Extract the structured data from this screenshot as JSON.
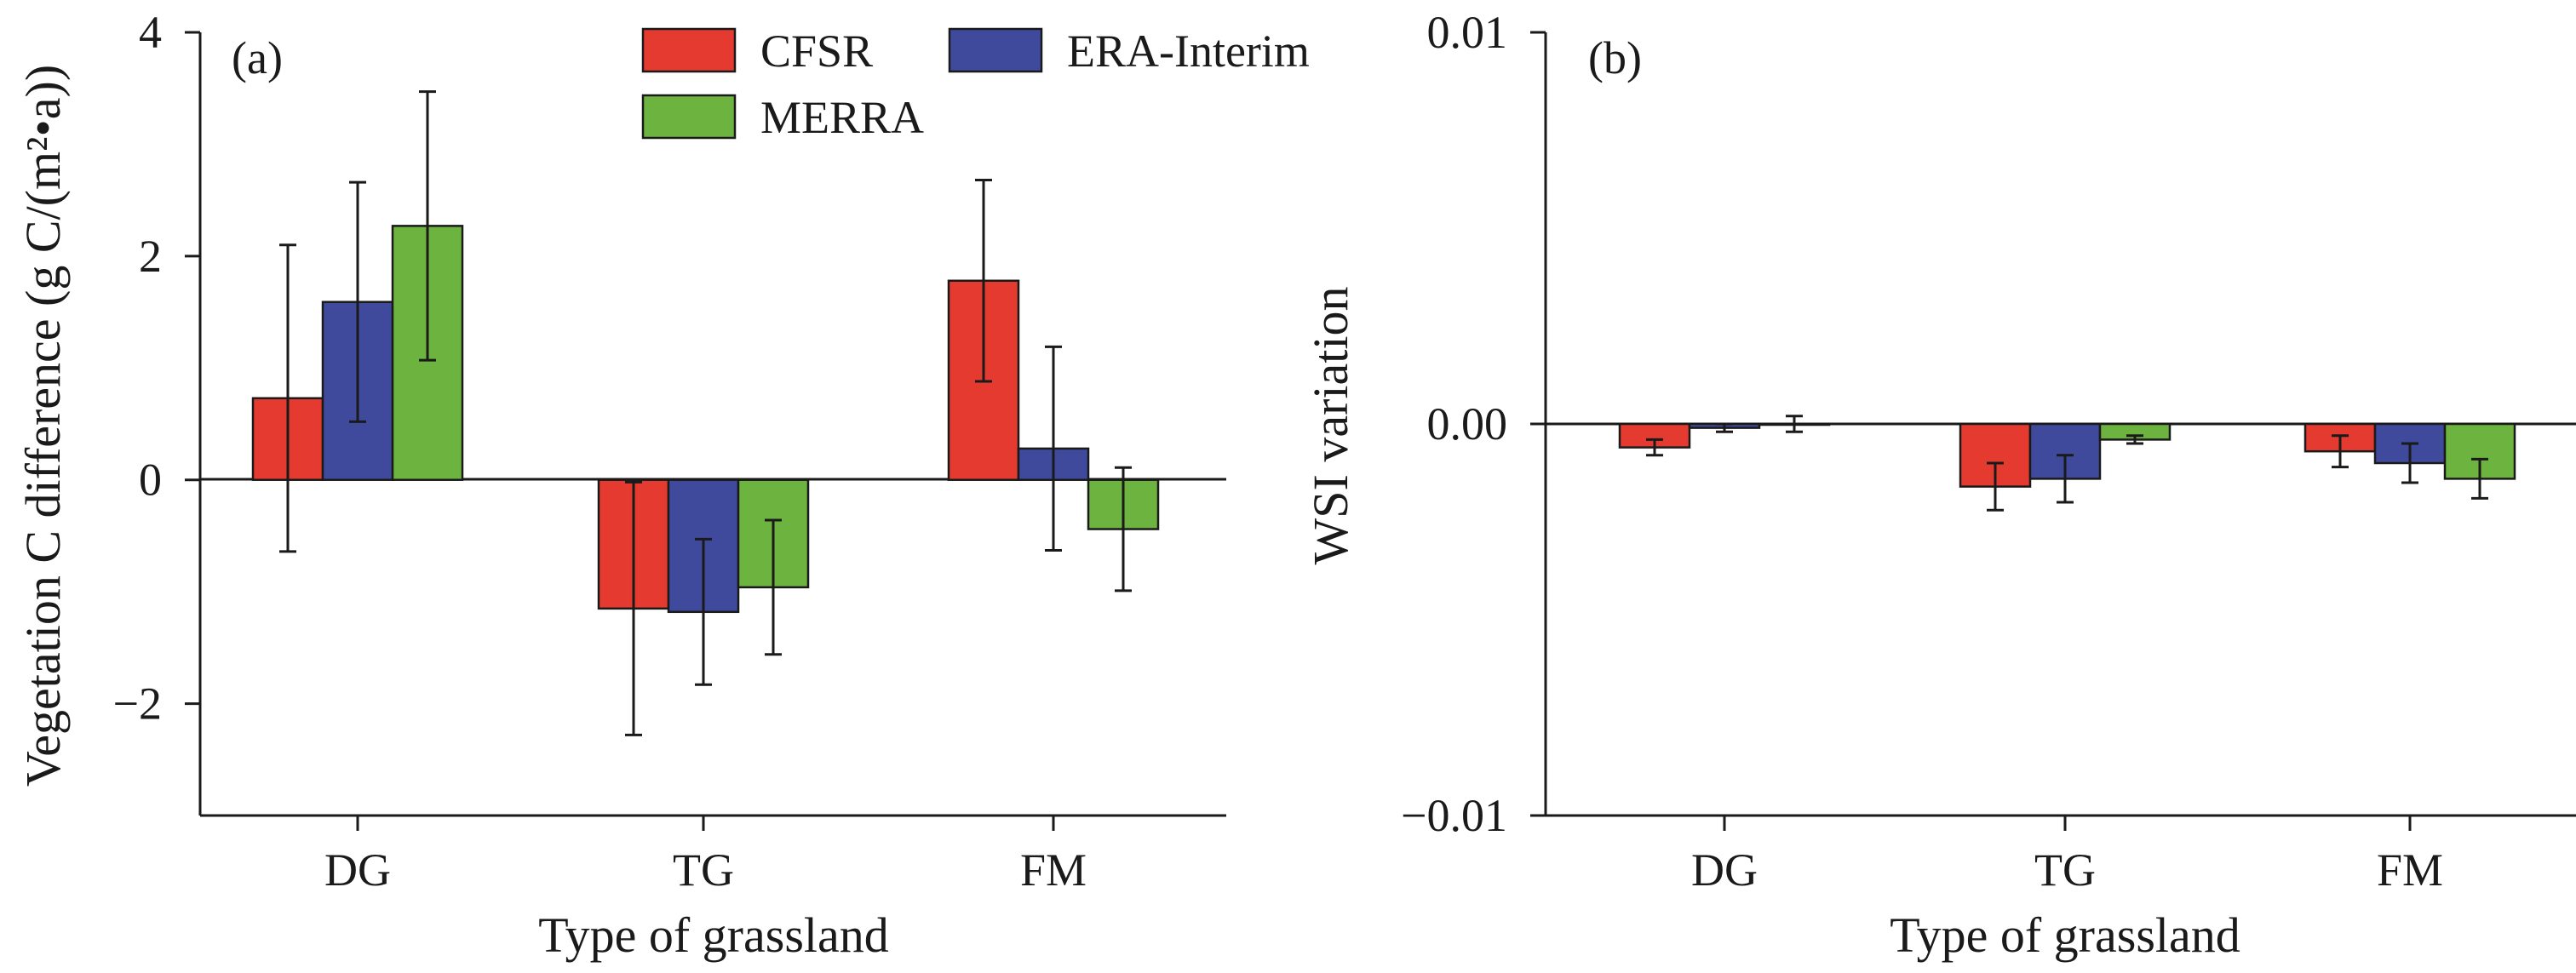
{
  "chart_data": [
    {
      "type": "bar",
      "panel_label": "(a)",
      "xlabel": "Type of grassland",
      "ylabel": "Vegetation C difference (g C/(m²•a))",
      "categories": [
        "DG",
        "TG",
        "FM"
      ],
      "ylim": [
        -3,
        4
      ],
      "yticks": [
        -2,
        0,
        2,
        4
      ],
      "ytick_labels": [
        "−2",
        "0",
        "2",
        "4"
      ],
      "grid": false,
      "legend_position": "top-center",
      "series": [
        {
          "name": "CFSR",
          "color": "#e53a2f",
          "values": [
            0.73,
            -1.15,
            1.78
          ],
          "errors": [
            1.37,
            1.13,
            0.9
          ]
        },
        {
          "name": "ERA-Interim",
          "color": "#3f4a9c",
          "values": [
            1.59,
            -1.18,
            0.28
          ],
          "errors": [
            1.07,
            0.65,
            0.91
          ]
        },
        {
          "name": "MERRA",
          "color": "#6db33f",
          "values": [
            2.27,
            -0.96,
            -0.44
          ],
          "errors": [
            1.2,
            0.6,
            0.55
          ]
        }
      ]
    },
    {
      "type": "bar",
      "panel_label": "(b)",
      "xlabel": "Type of grassland",
      "ylabel": "WSI variation",
      "categories": [
        "DG",
        "TG",
        "FM"
      ],
      "ylim": [
        -0.01,
        0.01
      ],
      "yticks": [
        -0.01,
        0,
        0.01
      ],
      "ytick_labels": [
        "−0.01",
        "0.00",
        "0.01"
      ],
      "grid": false,
      "series": [
        {
          "name": "CFSR",
          "color": "#e53a2f",
          "values": [
            -0.0006,
            -0.0016,
            -0.0007
          ],
          "errors": [
            0.0002,
            0.0006,
            0.0004
          ]
        },
        {
          "name": "ERA-Interim",
          "color": "#3f4a9c",
          "values": [
            -0.0001,
            -0.0014,
            -0.001
          ],
          "errors": [
            0.0001,
            0.0006,
            0.0005
          ]
        },
        {
          "name": "MERRA",
          "color": "#6db33f",
          "values": [
            0.0,
            -0.0004,
            -0.0014
          ],
          "errors": [
            0.0002,
            0.0001,
            0.0005
          ]
        }
      ]
    }
  ]
}
